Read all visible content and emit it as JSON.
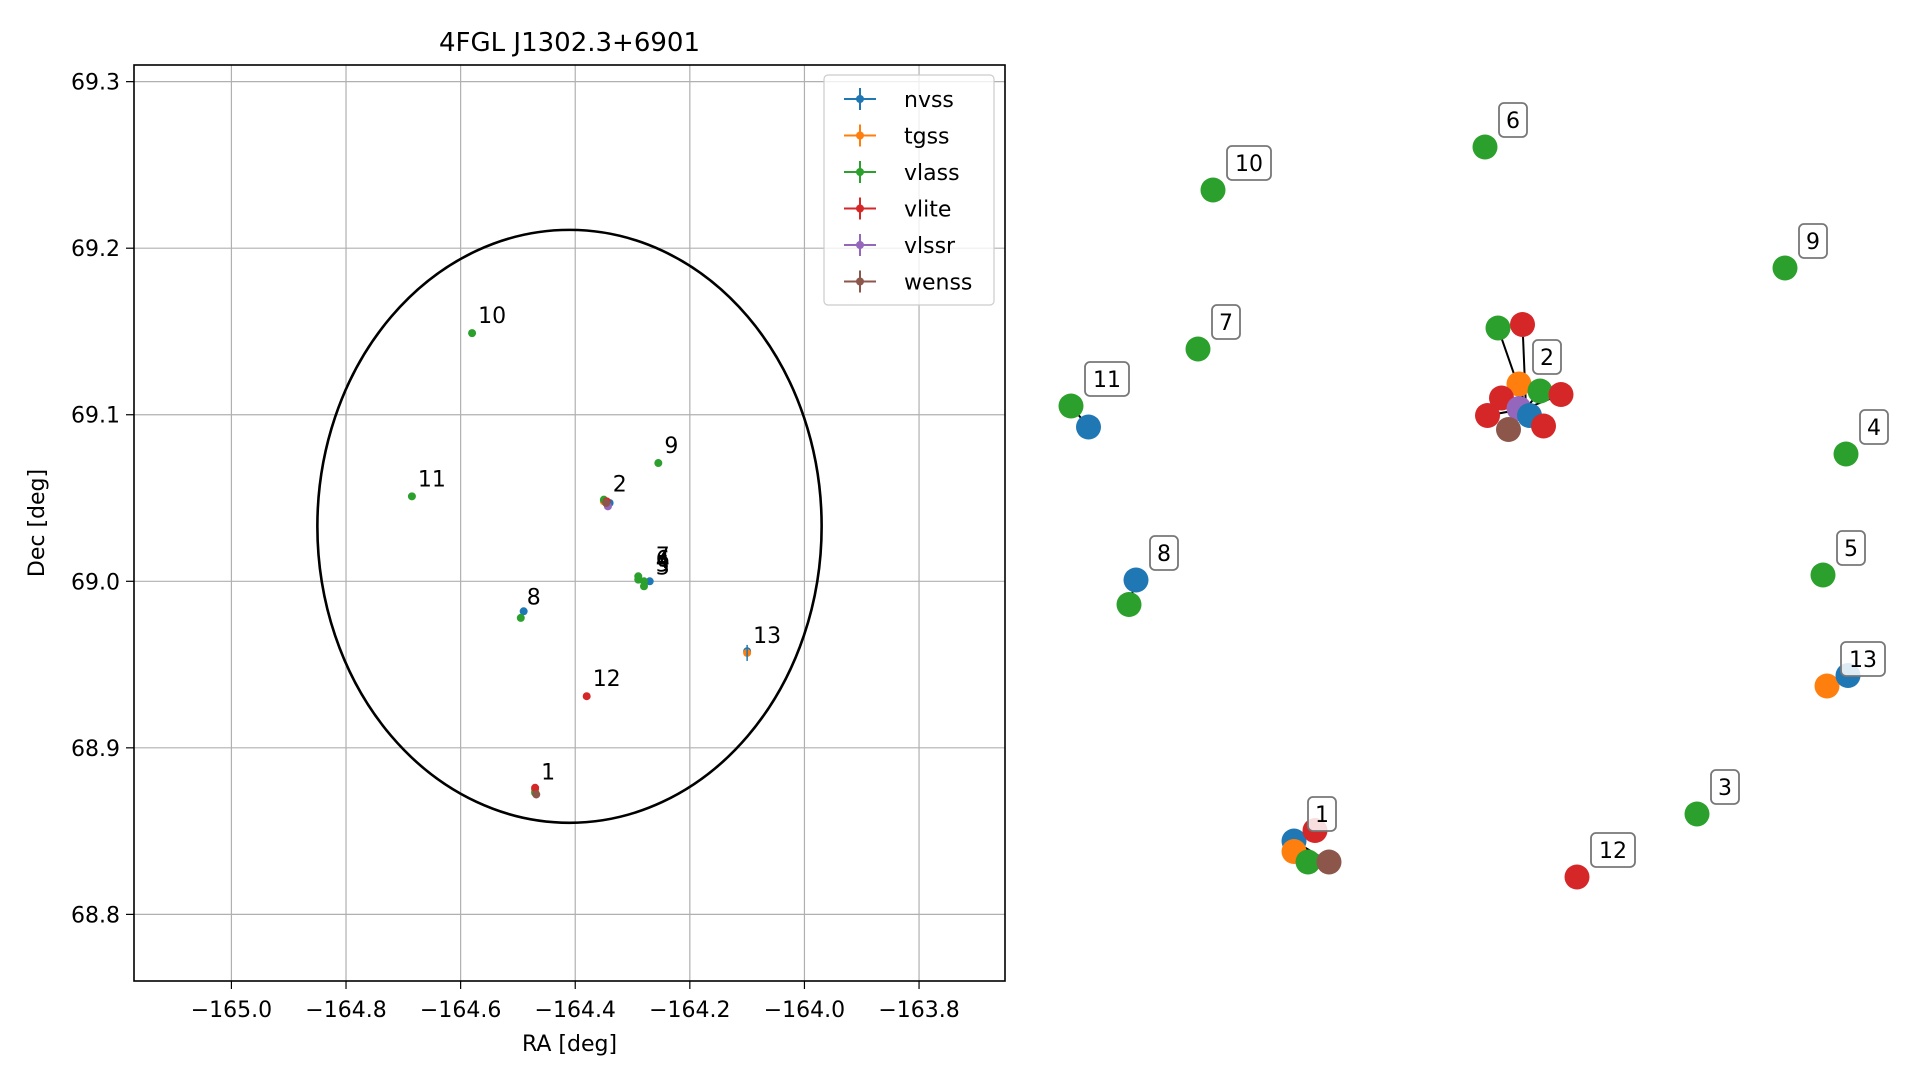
{
  "chart_data": [
    {
      "type": "scatter",
      "title": "4FGL J1302.3+6901",
      "xlabel": "RA [deg]",
      "ylabel": "Dec [deg]",
      "xlim": [
        -165.17,
        -163.65
      ],
      "ylim": [
        68.76,
        69.31
      ],
      "xticks": [
        -165.0,
        -164.8,
        -164.6,
        -164.4,
        -164.2,
        -164.0,
        -163.8
      ],
      "xtick_labels": [
        "−165.0",
        "−164.8",
        "−164.6",
        "−164.4",
        "−164.2",
        "−164.0",
        "−163.8"
      ],
      "yticks": [
        68.8,
        68.9,
        69.0,
        69.1,
        69.2,
        69.3
      ],
      "ytick_labels": [
        "68.8",
        "68.9",
        "69.0",
        "69.1",
        "69.2",
        "69.3"
      ],
      "grid": true,
      "legend_position": "top-right",
      "ellipse": {
        "center": [
          -164.41,
          69.033
        ],
        "semi_axis_ra": 0.44,
        "semi_axis_dec": 0.178,
        "color": "#000000"
      },
      "series": [
        {
          "name": "nvss",
          "color": "#1f77b4",
          "points": [
            [
              -164.47,
              68.875
            ],
            [
              -164.34,
              69.047
            ],
            [
              -164.49,
              68.982
            ],
            [
              -164.1,
              68.958
            ],
            [
              -164.27,
              69.0
            ]
          ]
        },
        {
          "name": "tgss",
          "color": "#ff7f0e",
          "points": [
            [
              -164.47,
              68.874
            ],
            [
              -164.35,
              69.048
            ],
            [
              -164.1,
              68.957
            ]
          ]
        },
        {
          "name": "vlass",
          "color": "#2ca02c",
          "points": [
            [
              -164.47,
              68.873
            ],
            [
              -164.35,
              69.049
            ],
            [
              -164.28,
              68.997
            ],
            [
              -164.29,
              69.003
            ],
            [
              -164.28,
              69.0
            ],
            [
              -164.255,
              69.071
            ],
            [
              -164.58,
              69.149
            ],
            [
              -164.685,
              69.051
            ],
            [
              -164.495,
              68.978
            ],
            [
              -164.29,
              69.001
            ]
          ]
        },
        {
          "name": "vlite",
          "color": "#d62728",
          "points": [
            [
              -164.47,
              68.876
            ],
            [
              -164.345,
              69.048
            ],
            [
              -164.38,
              68.931
            ]
          ]
        },
        {
          "name": "vlssr",
          "color": "#9467bd",
          "points": [
            [
              -164.343,
              69.045
            ]
          ]
        },
        {
          "name": "wenss",
          "color": "#8c564b",
          "points": [
            [
              -164.468,
              68.872
            ],
            [
              -164.346,
              69.047
            ]
          ]
        }
      ],
      "labels": [
        {
          "text": "1",
          "x": -164.47,
          "y": 68.875
        },
        {
          "text": "2",
          "x": -164.345,
          "y": 69.048
        },
        {
          "text": "3",
          "x": -164.27,
          "y": 68.998
        },
        {
          "text": "4",
          "x": -164.27,
          "y": 69.002
        },
        {
          "text": "5",
          "x": -164.27,
          "y": 69.0
        },
        {
          "text": "6",
          "x": -164.27,
          "y": 69.003
        },
        {
          "text": "7",
          "x": -164.27,
          "y": 69.005
        },
        {
          "text": "8",
          "x": -164.495,
          "y": 68.98
        },
        {
          "text": "9",
          "x": -164.255,
          "y": 69.071
        },
        {
          "text": "10",
          "x": -164.58,
          "y": 69.149
        },
        {
          "text": "11",
          "x": -164.685,
          "y": 69.051
        },
        {
          "text": "12",
          "x": -164.38,
          "y": 68.931
        },
        {
          "text": "13",
          "x": -164.1,
          "y": 68.957
        }
      ]
    },
    {
      "type": "scatter",
      "title": "",
      "description_free": true,
      "clusters": [
        {
          "label": "1",
          "points": [
            [
              "nvss",
              0.0,
              0.0
            ],
            [
              "vlite",
              0.3,
              0.15
            ],
            [
              "tgss",
              0.0,
              -0.15
            ],
            [
              "vlass",
              0.2,
              -0.3
            ],
            [
              "wenss",
              0.5,
              -0.3
            ]
          ]
        },
        {
          "label": "2",
          "points": [
            [
              "vlass",
              -0.3,
              0.8
            ],
            [
              "vlite",
              0.05,
              0.85
            ],
            [
              "tgss",
              0.0,
              0.0
            ],
            [
              "vlass",
              0.3,
              -0.1
            ],
            [
              "vlite",
              0.6,
              -0.15
            ],
            [
              "vlite",
              -0.25,
              -0.2
            ],
            [
              "vlite",
              -0.45,
              -0.45
            ],
            [
              "vlssr",
              0.0,
              -0.35
            ],
            [
              "nvss",
              0.15,
              -0.45
            ],
            [
              "vlite",
              0.35,
              -0.6
            ],
            [
              "wenss",
              -0.15,
              -0.65
            ]
          ]
        },
        {
          "label": "3",
          "points": [
            [
              "vlass",
              0.0,
              0.0
            ]
          ]
        },
        {
          "label": "4",
          "points": [
            [
              "vlass",
              0.0,
              0.0
            ]
          ]
        },
        {
          "label": "5",
          "points": [
            [
              "vlass",
              0.0,
              0.0
            ]
          ]
        },
        {
          "label": "6",
          "points": [
            [
              "vlass",
              0.0,
              0.0
            ]
          ]
        },
        {
          "label": "7",
          "points": [
            [
              "vlass",
              0.0,
              0.0
            ]
          ]
        },
        {
          "label": "8",
          "points": [
            [
              "nvss",
              0.0,
              0.0
            ],
            [
              "vlass",
              -0.1,
              -0.35
            ]
          ]
        },
        {
          "label": "9",
          "points": [
            [
              "vlass",
              0.0,
              0.0
            ]
          ]
        },
        {
          "label": "10",
          "points": [
            [
              "vlass",
              0.0,
              0.0
            ]
          ]
        },
        {
          "label": "11",
          "points": [
            [
              "vlass",
              0.0,
              0.0
            ],
            [
              "nvss",
              0.25,
              -0.3
            ]
          ]
        },
        {
          "label": "12",
          "points": [
            [
              "vlite",
              0.0,
              0.0
            ]
          ]
        },
        {
          "label": "13",
          "points": [
            [
              "tgss",
              0.0,
              0.0
            ],
            [
              "nvss",
              0.3,
              0.15
            ]
          ]
        }
      ],
      "colors": {
        "nvss": "#1f77b4",
        "tgss": "#ff7f0e",
        "vlass": "#2ca02c",
        "vlite": "#d62728",
        "vlssr": "#9467bd",
        "wenss": "#8c564b"
      }
    }
  ]
}
